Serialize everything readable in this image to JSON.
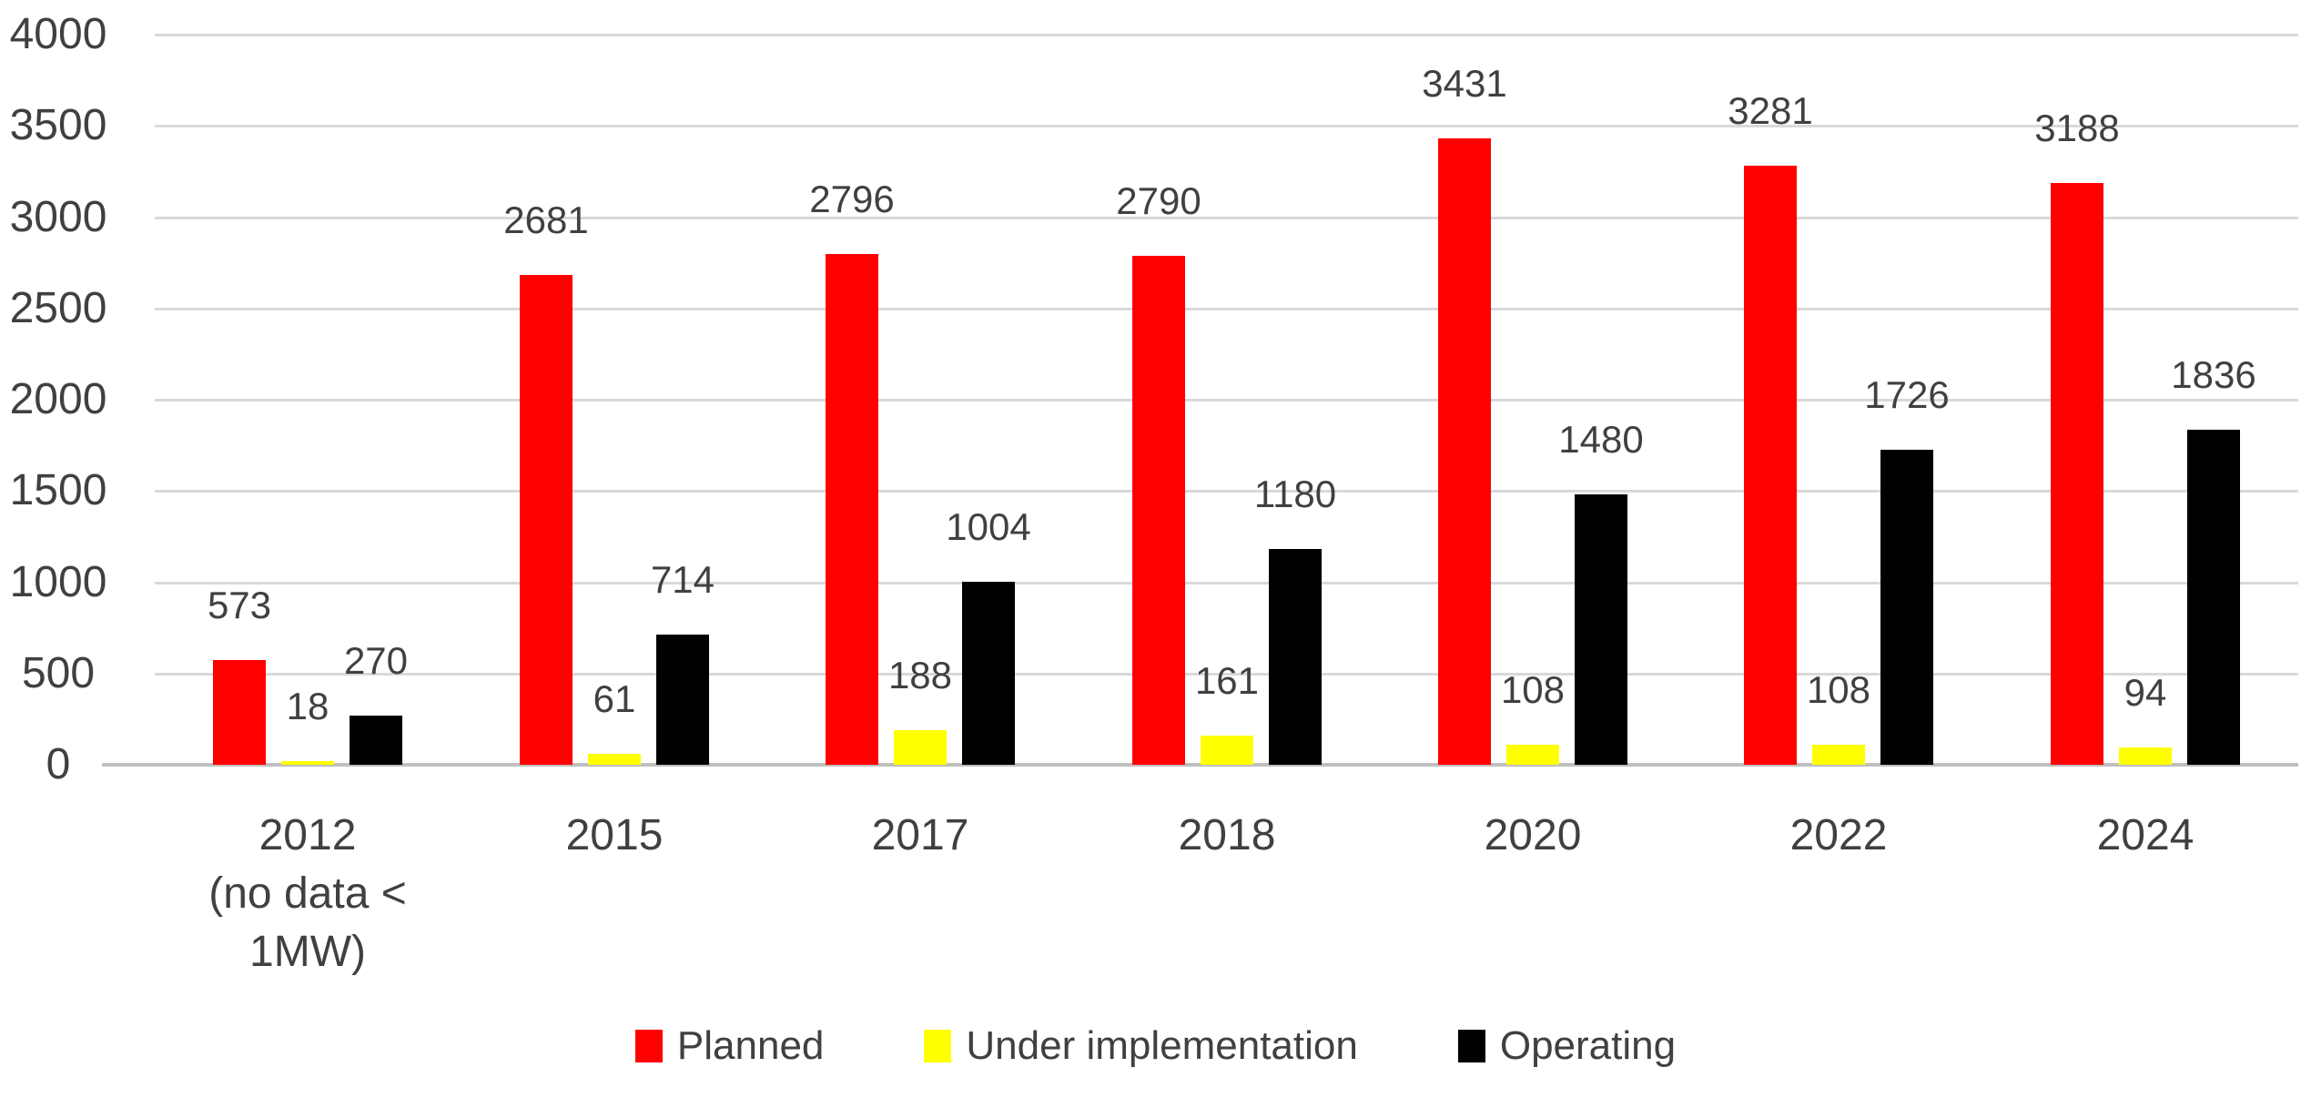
{
  "chart_data": {
    "type": "bar",
    "title": "",
    "xlabel": "",
    "ylabel": "",
    "categories": [
      "2012\n(no data <\n1MW)",
      "2015",
      "2017",
      "2018",
      "2020",
      "2022",
      "2024"
    ],
    "series": [
      {
        "name": "Planned",
        "color": "#ff0000",
        "values": [
          573,
          2681,
          2796,
          2790,
          3431,
          3281,
          3188
        ]
      },
      {
        "name": "Under implementation",
        "color": "#ffff00",
        "values": [
          18,
          61,
          188,
          161,
          108,
          108,
          94
        ]
      },
      {
        "name": "Operating",
        "color": "#000000",
        "values": [
          270,
          714,
          1004,
          1180,
          1480,
          1726,
          1836
        ]
      }
    ],
    "data_labels": true,
    "ylim": [
      0,
      4000
    ],
    "yticks": [
      0,
      500,
      1000,
      1500,
      2000,
      2500,
      3000,
      3500,
      4000
    ],
    "grid": true,
    "legend_position": "bottom",
    "colors": {
      "grid": "#d9d9d9",
      "axis": "#bfbfbf",
      "text": "#404040",
      "background": "#ffffff"
    }
  }
}
